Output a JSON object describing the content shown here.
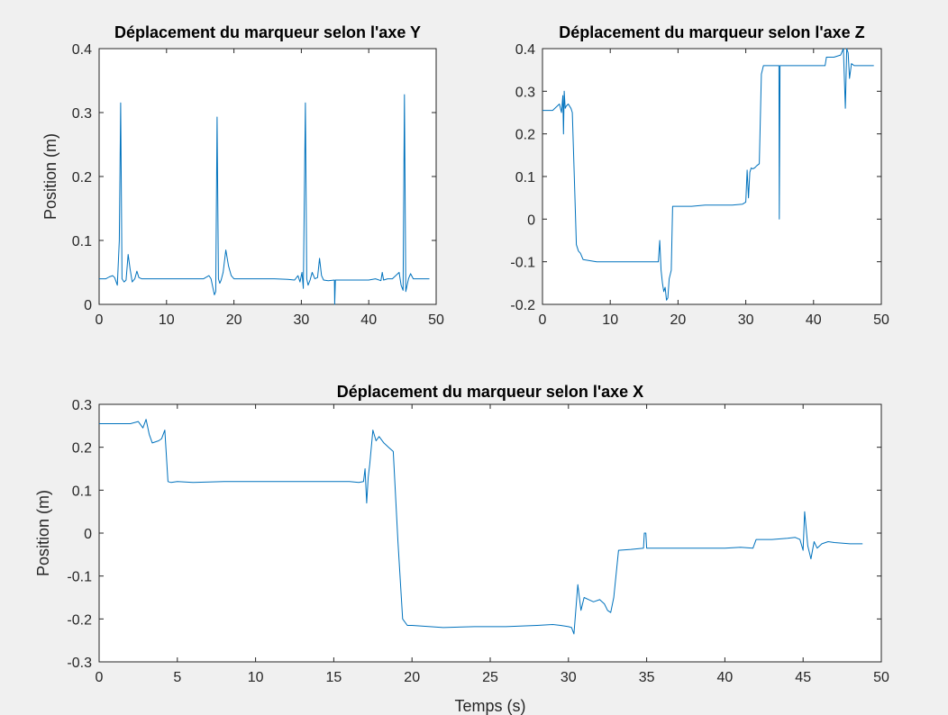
{
  "figure": {
    "background": "#f0f0f0",
    "axes_background": "#ffffff",
    "line_color": "#0072bd"
  },
  "chart_data": [
    {
      "type": "line",
      "title": "Déplacement du marqueur selon l'axe Y",
      "xlabel": "",
      "ylabel": "Position (m)",
      "xlim": [
        0,
        50
      ],
      "ylim": [
        0,
        0.4
      ],
      "xticks": [
        0,
        10,
        20,
        30,
        40,
        50
      ],
      "yticks": [
        0,
        0.1,
        0.2,
        0.3,
        0.4
      ],
      "grid": false,
      "series": [
        {
          "x": [
            0,
            1,
            1.5,
            2,
            2.3,
            2.7,
            3.0,
            3.2,
            3.4,
            3.7,
            4.0,
            4.3,
            4.6,
            4.9,
            5.3,
            5.6,
            5.9,
            6.3,
            8,
            10,
            12,
            14,
            15.5,
            16.3,
            16.6,
            16.9,
            17.1,
            17.3,
            17.5,
            17.7,
            17.9,
            18.1,
            18.4,
            18.8,
            19.2,
            19.6,
            20,
            22,
            24,
            26,
            28,
            29,
            29.5,
            29.8,
            30.1,
            30.3,
            30.6,
            30.8,
            31.0,
            31.3,
            31.6,
            32,
            32.4,
            32.7,
            33.0,
            33.3,
            34,
            34.9,
            34.95,
            35.05,
            35.1,
            36,
            38,
            40,
            41,
            41.8,
            42,
            42.2,
            42.8,
            43.5,
            44,
            44.5,
            44.8,
            45.1,
            45.3,
            45.5,
            45.7,
            45.9,
            46.2,
            46.6,
            47,
            48,
            49
          ],
          "y": [
            0.04,
            0.04,
            0.043,
            0.045,
            0.042,
            0.03,
            0.1,
            0.315,
            0.04,
            0.035,
            0.038,
            0.078,
            0.055,
            0.035,
            0.04,
            0.052,
            0.042,
            0.04,
            0.04,
            0.04,
            0.04,
            0.04,
            0.04,
            0.045,
            0.04,
            0.025,
            0.015,
            0.02,
            0.293,
            0.04,
            0.033,
            0.038,
            0.05,
            0.085,
            0.06,
            0.045,
            0.04,
            0.04,
            0.04,
            0.04,
            0.039,
            0.038,
            0.045,
            0.035,
            0.05,
            0.025,
            0.315,
            0.04,
            0.03,
            0.038,
            0.05,
            0.04,
            0.042,
            0.072,
            0.045,
            0.038,
            0.037,
            0.038,
            0.0,
            0.038,
            0.038,
            0.038,
            0.038,
            0.038,
            0.04,
            0.037,
            0.05,
            0.038,
            0.04,
            0.04,
            0.045,
            0.05,
            0.03,
            0.022,
            0.328,
            0.02,
            0.03,
            0.04,
            0.048,
            0.04,
            0.04,
            0.04,
            0.04
          ]
        }
      ]
    },
    {
      "type": "line",
      "title": "Déplacement du marqueur selon l'axe Z",
      "xlabel": "",
      "ylabel": "",
      "xlim": [
        0,
        50
      ],
      "ylim": [
        -0.2,
        0.4
      ],
      "xticks": [
        0,
        10,
        20,
        30,
        40,
        50
      ],
      "yticks": [
        -0.2,
        -0.1,
        0,
        0.1,
        0.2,
        0.3,
        0.4
      ],
      "grid": false,
      "series": [
        {
          "x": [
            0,
            1.5,
            2.5,
            2.8,
            3.0,
            3.1,
            3.2,
            3.35,
            3.5,
            3.8,
            4.2,
            4.4,
            4.7,
            5.0,
            5.3,
            5.6,
            6,
            8,
            10,
            12,
            14,
            16,
            17.1,
            17.3,
            17.5,
            17.7,
            17.9,
            18.1,
            18.3,
            18.5,
            18.7,
            19.0,
            19.2,
            19.4,
            20,
            22,
            24,
            26,
            28,
            29.5,
            30,
            30.2,
            30.4,
            30.6,
            30.8,
            31.0,
            31.3,
            31.6,
            32,
            32.3,
            32.6,
            32.9,
            33.2,
            34,
            34.9,
            34.95,
            35.05,
            35.1,
            36,
            38,
            40,
            41,
            41.7,
            41.9,
            42.2,
            43,
            44,
            44.4,
            44.7,
            44.9,
            45.1,
            45.3,
            45.6,
            46,
            47,
            48,
            48.9
          ],
          "y": [
            0.255,
            0.255,
            0.27,
            0.25,
            0.29,
            0.2,
            0.3,
            0.26,
            0.265,
            0.27,
            0.26,
            0.25,
            0.1,
            -0.06,
            -0.075,
            -0.08,
            -0.095,
            -0.1,
            -0.1,
            -0.1,
            -0.1,
            -0.1,
            -0.1,
            -0.05,
            -0.12,
            -0.15,
            -0.17,
            -0.16,
            -0.19,
            -0.185,
            -0.14,
            -0.12,
            0.03,
            0.03,
            0.03,
            0.03,
            0.033,
            0.033,
            0.033,
            0.035,
            0.04,
            0.115,
            0.05,
            0.11,
            0.12,
            0.118,
            0.12,
            0.125,
            0.13,
            0.34,
            0.36,
            0.36,
            0.36,
            0.36,
            0.36,
            0.0,
            0.36,
            0.36,
            0.36,
            0.36,
            0.36,
            0.36,
            0.36,
            0.38,
            0.38,
            0.38,
            0.385,
            0.4,
            0.26,
            0.4,
            0.39,
            0.33,
            0.365,
            0.36,
            0.36,
            0.36,
            0.36
          ]
        }
      ]
    },
    {
      "type": "line",
      "title": "Déplacement du marqueur selon l'axe X",
      "xlabel": "Temps (s)",
      "ylabel": "Position (m)",
      "xlim": [
        0,
        50
      ],
      "ylim": [
        -0.3,
        0.3
      ],
      "xticks": [
        0,
        5,
        10,
        15,
        20,
        25,
        30,
        35,
        40,
        45,
        50
      ],
      "yticks": [
        -0.3,
        -0.2,
        -0.1,
        0,
        0.1,
        0.2,
        0.3
      ],
      "grid": false,
      "series": [
        {
          "x": [
            0,
            1,
            2,
            2.5,
            2.8,
            3.0,
            3.2,
            3.4,
            3.8,
            4.0,
            4.2,
            4.4,
            4.6,
            5,
            6,
            8,
            10,
            12,
            14,
            15,
            16,
            16.6,
            16.9,
            17.0,
            17.1,
            17.2,
            17.3,
            17.5,
            17.7,
            17.9,
            18.2,
            18.5,
            18.8,
            19.1,
            19.4,
            19.7,
            20,
            22,
            24,
            26,
            28,
            29,
            29.5,
            30,
            30.2,
            30.35,
            30.6,
            30.8,
            31.0,
            31.3,
            31.6,
            32,
            32.3,
            32.5,
            32.7,
            32.9,
            33.2,
            34,
            34.8,
            34.85,
            34.95,
            35.0,
            35.5,
            36,
            38,
            40,
            41,
            41.8,
            42,
            42.2,
            43,
            44,
            44.5,
            44.8,
            45.0,
            45.1,
            45.3,
            45.5,
            45.7,
            45.9,
            46.2,
            46.6,
            47,
            48,
            48.8
          ],
          "y": [
            0.255,
            0.255,
            0.255,
            0.26,
            0.245,
            0.265,
            0.23,
            0.21,
            0.215,
            0.22,
            0.24,
            0.12,
            0.118,
            0.12,
            0.118,
            0.12,
            0.12,
            0.12,
            0.12,
            0.12,
            0.12,
            0.118,
            0.12,
            0.15,
            0.07,
            0.13,
            0.16,
            0.24,
            0.215,
            0.225,
            0.21,
            0.2,
            0.19,
            -0.02,
            -0.2,
            -0.215,
            -0.215,
            -0.22,
            -0.218,
            -0.218,
            -0.215,
            -0.213,
            -0.215,
            -0.218,
            -0.22,
            -0.235,
            -0.12,
            -0.18,
            -0.15,
            -0.155,
            -0.16,
            -0.155,
            -0.165,
            -0.18,
            -0.185,
            -0.15,
            -0.04,
            -0.038,
            -0.035,
            0.0,
            0.0,
            -0.035,
            -0.035,
            -0.035,
            -0.035,
            -0.035,
            -0.033,
            -0.035,
            -0.015,
            -0.015,
            -0.015,
            -0.012,
            -0.01,
            -0.015,
            -0.04,
            0.05,
            -0.03,
            -0.06,
            -0.02,
            -0.035,
            -0.025,
            -0.02,
            -0.022,
            -0.025,
            -0.025
          ]
        }
      ]
    }
  ]
}
